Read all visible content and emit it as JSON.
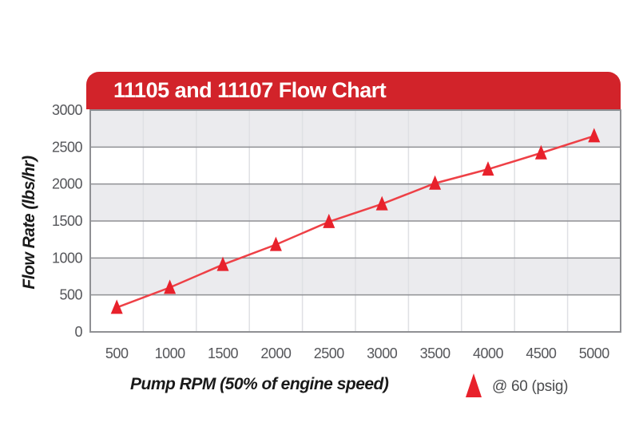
{
  "header": {
    "title": "11105 and 11107 Flow Chart"
  },
  "chart_data": {
    "type": "line",
    "title": "11105 and 11107 Flow Chart",
    "x": [
      500,
      1000,
      1500,
      2000,
      2500,
      3000,
      3500,
      4000,
      4500,
      5000
    ],
    "series": [
      {
        "name": "@ 60 (psig)",
        "marker": "triangle-up",
        "values": [
          330,
          600,
          910,
          1180,
          1490,
          1730,
          2010,
          2200,
          2420,
          2650
        ]
      }
    ],
    "xlabel": "Pump RPM (50% of engine speed)",
    "ylabel": "Flow Rate (lbs/hr)",
    "ylim": [
      0,
      3000
    ],
    "ytick_step": 500,
    "yticks": [
      0,
      500,
      1000,
      1500,
      2000,
      2500,
      3000
    ],
    "grid": {
      "horizontal": true,
      "vertical": true,
      "alternating_bands": true,
      "band_order_from_top": [
        "gray",
        "white",
        "gray",
        "white",
        "gray",
        "white"
      ]
    },
    "legend_position": "bottom-right"
  },
  "colors": {
    "banner_red": "#d2232a",
    "marker_red": "#e8212b",
    "line_red": "#ee4046",
    "band_gray": "#ebebee",
    "hgrid_gray": "#8f9094",
    "vgrid_gray": "#dfe0e4",
    "border_gray": "#8f9094",
    "tick_text": "#55565a",
    "axis_title_text": "#1a1a1a",
    "legend_text": "#4b4c4e",
    "title_text": "#ffffff"
  }
}
